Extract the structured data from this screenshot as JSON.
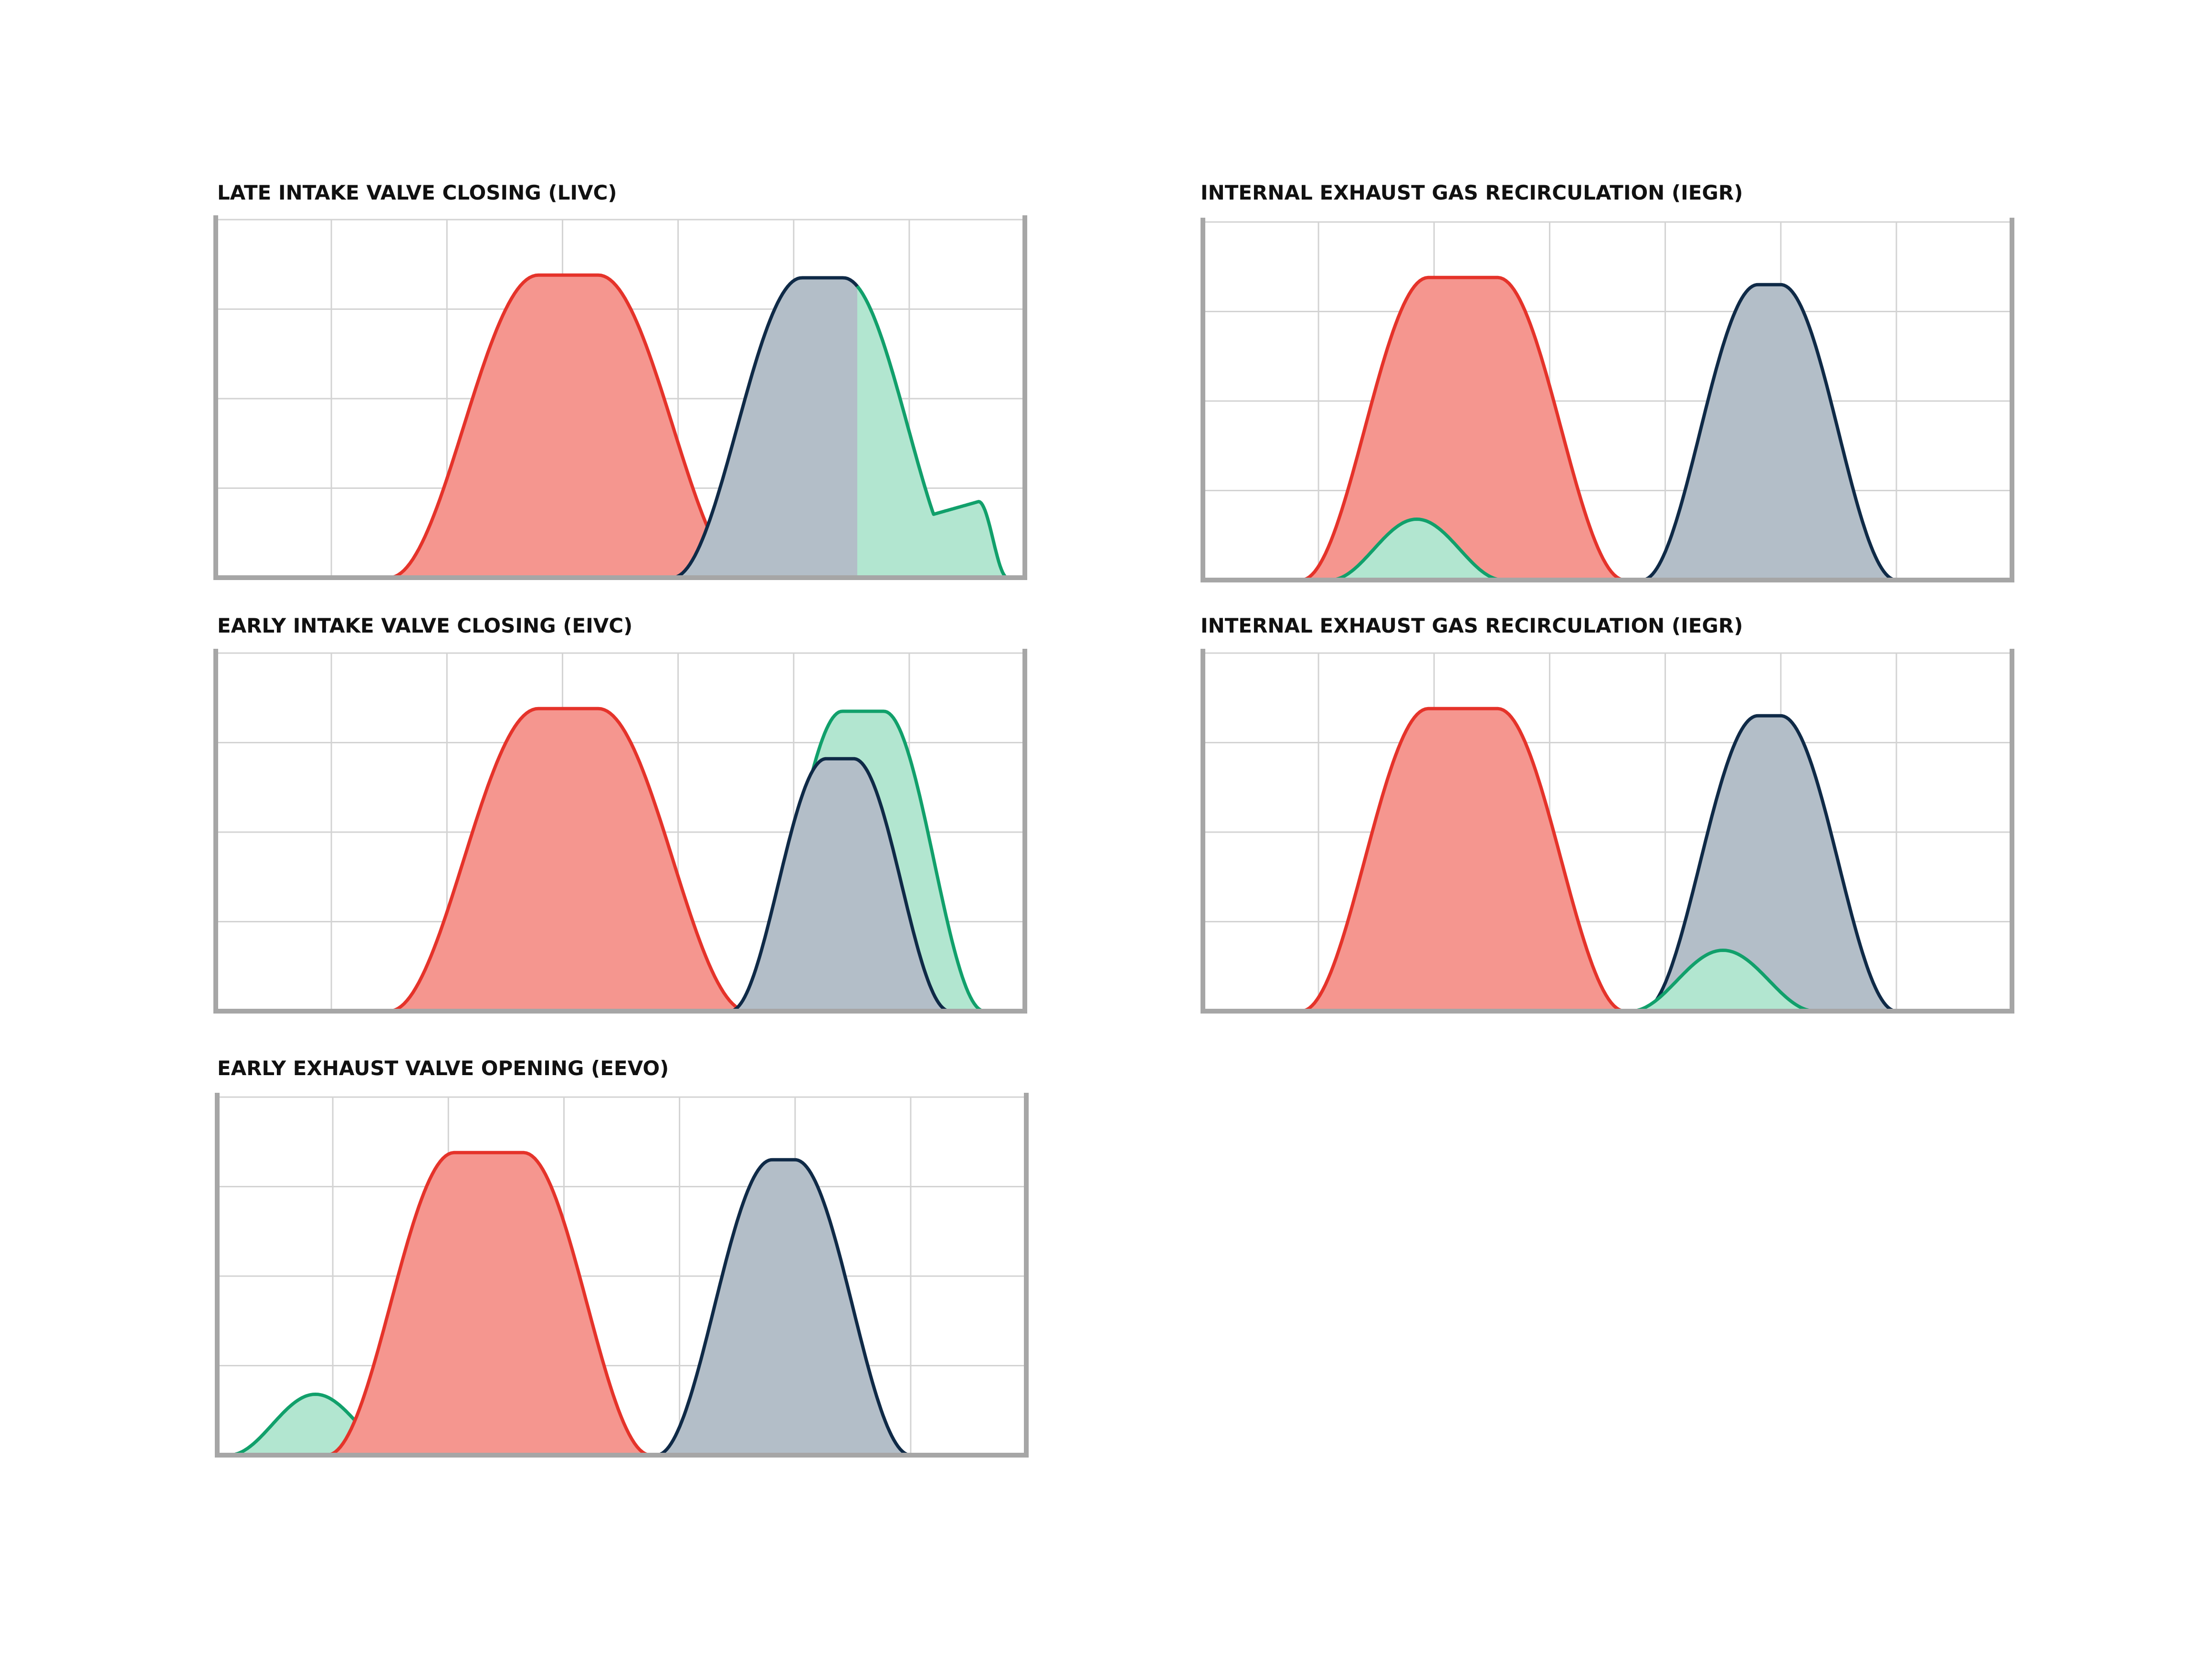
{
  "colors": {
    "intake_stroke": "#e5332a",
    "intake_fill": "#f5968f",
    "exhaust_stroke": "#0f2a47",
    "exhaust_fill": "#b3bec8",
    "extra_stroke": "#11a06b",
    "extra_fill": "#b2e6d0",
    "grid": "#d3d3d3",
    "axis": "#a6a6a6"
  },
  "chart_data": [
    {
      "type": "area",
      "title": "LATE INTAKE VALVE CLOSING (LIVC)",
      "xlim": [
        0,
        7
      ],
      "ylim": [
        0,
        4
      ],
      "grid": true,
      "series": [
        {
          "role": "intake",
          "center": 3.05,
          "half_width": 1.55,
          "peak": 3.38,
          "flat": 0.26
        },
        {
          "role": "exhaust",
          "center": 5.25,
          "half_width": 1.3,
          "peak": 3.35,
          "flat": 0.18
        },
        {
          "role": "extra",
          "start": 5.55,
          "end": 6.85,
          "shoulder": 0.85
        }
      ]
    },
    {
      "type": "area",
      "title": "INTERNAL EXHAUST GAS RECIRCULATION (IEGR)",
      "xlim": [
        0,
        7
      ],
      "ylim": [
        0,
        4
      ],
      "grid": true,
      "series": [
        {
          "role": "intake",
          "center": 2.25,
          "half_width": 1.4,
          "peak": 3.38,
          "flat": 0.3
        },
        {
          "role": "extra",
          "center": 1.85,
          "half_width": 0.75,
          "peak": 0.68,
          "flat": 0.0
        },
        {
          "role": "exhaust",
          "center": 4.9,
          "half_width": 1.1,
          "peak": 3.3,
          "flat": 0.1
        }
      ]
    },
    {
      "type": "area",
      "title": "EARLY INTAKE VALVE CLOSING (EIVC)",
      "xlim": [
        0,
        7
      ],
      "ylim": [
        0,
        4
      ],
      "grid": true,
      "series": [
        {
          "role": "intake",
          "center": 3.05,
          "half_width": 1.55,
          "peak": 3.38,
          "flat": 0.26
        },
        {
          "role": "extra",
          "center": 5.6,
          "half_width": 1.05,
          "peak": 3.35,
          "flat": 0.18
        },
        {
          "role": "exhaust",
          "center": 5.4,
          "half_width": 0.95,
          "peak": 2.82,
          "flat": 0.12
        }
      ]
    },
    {
      "type": "area",
      "title": "INTERNAL EXHAUST GAS RECIRCULATION (IEGR)",
      "xlim": [
        0,
        7
      ],
      "ylim": [
        0,
        4
      ],
      "grid": true,
      "series": [
        {
          "role": "intake",
          "center": 2.25,
          "half_width": 1.4,
          "peak": 3.38,
          "flat": 0.3
        },
        {
          "role": "exhaust",
          "center": 4.9,
          "half_width": 1.1,
          "peak": 3.3,
          "flat": 0.1
        },
        {
          "role": "extra",
          "center": 4.5,
          "half_width": 0.8,
          "peak": 0.68,
          "flat": 0.0
        }
      ]
    },
    {
      "type": "area",
      "title": "EARLY EXHAUST VALVE OPENING (EEVO)",
      "xlim": [
        0,
        7
      ],
      "ylim": [
        0,
        4
      ],
      "grid": true,
      "series": [
        {
          "role": "extra",
          "center": 0.85,
          "half_width": 0.75,
          "peak": 0.68,
          "flat": 0.0
        },
        {
          "role": "intake",
          "center": 2.35,
          "half_width": 1.4,
          "peak": 3.38,
          "flat": 0.3
        },
        {
          "role": "exhaust",
          "center": 4.9,
          "half_width": 1.1,
          "peak": 3.3,
          "flat": 0.1
        }
      ]
    }
  ]
}
